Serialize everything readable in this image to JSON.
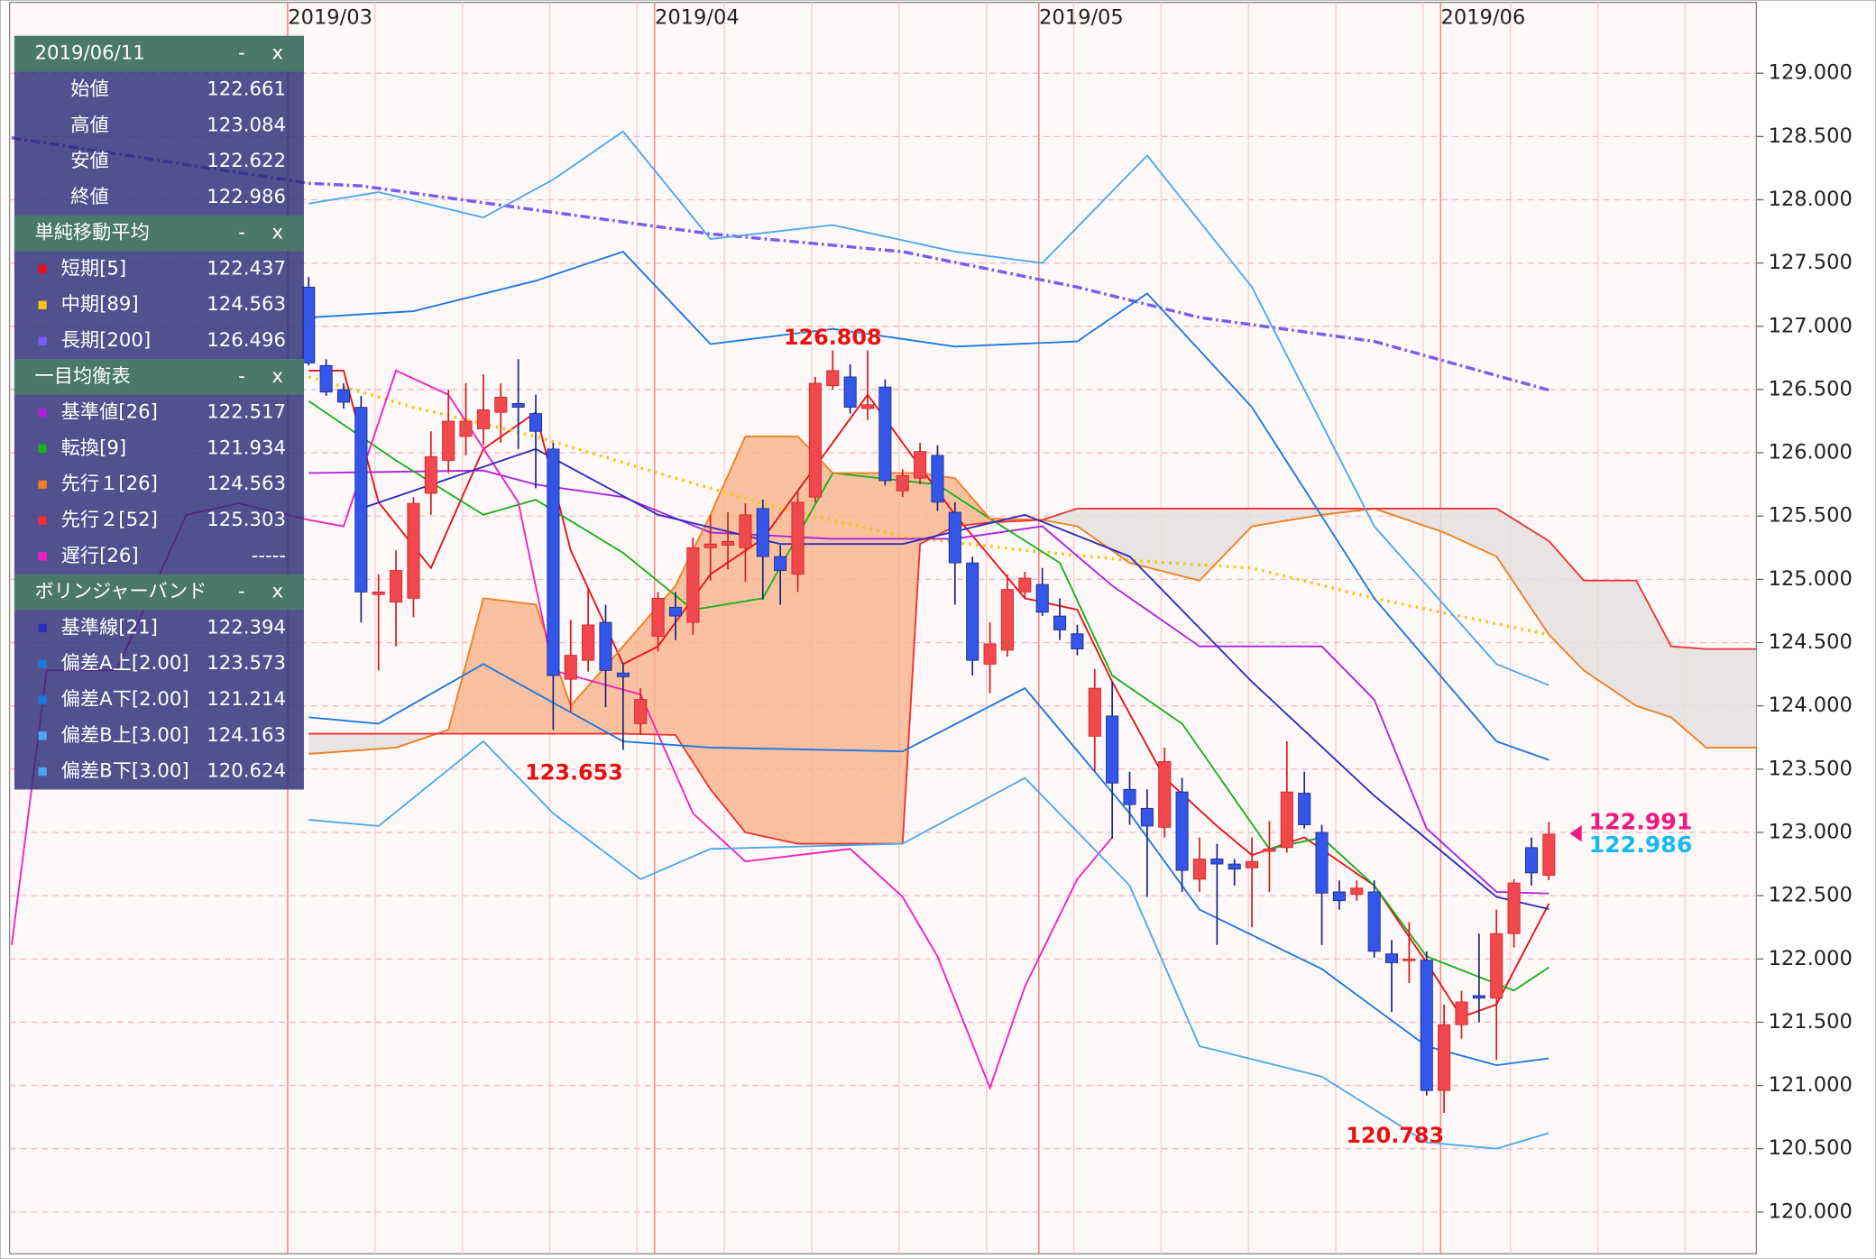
{
  "chart_data": {
    "type": "candlestick",
    "date": "2019/06/11",
    "controls": [
      "-",
      "x"
    ],
    "ohlc_labels": [
      "始値",
      "高値",
      "安値",
      "終値"
    ],
    "up_color": "#f0484d",
    "down_color": "#3355e8",
    "ylim": [
      119.67,
      129.56
    ],
    "yticks": [
      {
        "value": 120,
        "label": "120.000"
      },
      {
        "value": 120.5,
        "label": "120.500"
      },
      {
        "value": 121,
        "label": "121.000"
      },
      {
        "value": 121.5,
        "label": "121.500"
      },
      {
        "value": 122,
        "label": "122.000"
      },
      {
        "value": 122.5,
        "label": "122.500"
      },
      {
        "value": 123,
        "label": "123.000"
      },
      {
        "value": 123.5,
        "label": "123.500"
      },
      {
        "value": 124,
        "label": "124.000"
      },
      {
        "value": 124.5,
        "label": "124.500"
      },
      {
        "value": 125,
        "label": "125.000"
      },
      {
        "value": 125.5,
        "label": "125.500"
      },
      {
        "value": 126,
        "label": "126.000"
      },
      {
        "value": 126.5,
        "label": "126.500"
      },
      {
        "value": 127,
        "label": "127.000"
      },
      {
        "value": 127.5,
        "label": "127.500"
      },
      {
        "value": 128,
        "label": "128.000"
      },
      {
        "value": 128.5,
        "label": "128.500"
      },
      {
        "value": 129,
        "label": "129.000"
      }
    ],
    "grid": true,
    "categories": [
      "2019/03",
      null,
      null,
      null,
      null,
      null,
      null,
      null,
      null,
      null,
      null,
      null,
      null,
      null,
      null,
      null,
      null,
      null,
      null,
      null,
      null,
      "2019/04",
      null,
      null,
      null,
      null,
      null,
      null,
      null,
      null,
      null,
      null,
      null,
      null,
      null,
      null,
      null,
      null,
      null,
      null,
      null,
      null,
      null,
      "2019/05",
      null,
      null,
      null,
      null,
      null,
      null,
      null,
      null,
      null,
      null,
      null,
      null,
      null,
      null,
      null,
      null,
      null,
      null,
      null,
      null,
      null,
      null,
      "2019/06",
      null,
      null,
      null,
      null,
      null
    ],
    "open": [
      127.31,
      126.69,
      126.5,
      126.36,
      124.88,
      124.82,
      124.85,
      125.68,
      125.94,
      126.13,
      126.19,
      126.32,
      126.39,
      126.31,
      126.03,
      124.21,
      124.36,
      124.66,
      124.26,
      123.86,
      124.55,
      124.78,
      124.66,
      125.25,
      125.27,
      125.25,
      125.56,
      125.18,
      125.04,
      125.65,
      126.53,
      126.6,
      126.35,
      126.52,
      125.7,
      125.8,
      125.98,
      125.53,
      125.13,
      124.33,
      124.44,
      124.9,
      124.96,
      124.71,
      124.57,
      123.76,
      123.92,
      123.34,
      123.19,
      123.04,
      123.32,
      122.63,
      122.79,
      122.75,
      122.72,
      122.85,
      122.88,
      123.31,
      123.0,
      122.53,
      122.51,
      122.53,
      122.04,
      121.99,
      121.99,
      120.96,
      121.48,
      121.71,
      121.69,
      122.2,
      122.88,
      122.661
    ],
    "high": [
      127.39,
      126.74,
      126.55,
      126.45,
      125.04,
      125.23,
      125.65,
      126.17,
      126.5,
      126.55,
      126.62,
      126.55,
      126.74,
      126.46,
      126.08,
      124.68,
      124.93,
      124.8,
      124.34,
      124.14,
      124.9,
      124.9,
      125.33,
      125.51,
      125.53,
      125.6,
      125.63,
      125.27,
      125.7,
      126.6,
      126.808,
      126.7,
      126.81,
      126.58,
      125.87,
      126.08,
      126.06,
      125.61,
      125.18,
      124.66,
      125.04,
      125.06,
      125.09,
      124.85,
      124.64,
      124.29,
      124.19,
      123.48,
      123.34,
      123.67,
      123.43,
      122.96,
      122.91,
      122.79,
      122.96,
      123.09,
      123.72,
      123.48,
      123.06,
      122.62,
      122.62,
      122.62,
      122.15,
      122.29,
      122.06,
      121.64,
      121.75,
      122.2,
      122.39,
      122.63,
      122.96,
      123.084
    ],
    "low": [
      126.69,
      126.45,
      126.35,
      124.66,
      124.28,
      124.47,
      124.7,
      125.51,
      125.84,
      125.98,
      126.06,
      126.08,
      126.03,
      125.72,
      123.81,
      123.95,
      124.27,
      123.99,
      123.653,
      123.77,
      124.43,
      124.52,
      124.56,
      124.99,
      125.08,
      124.98,
      124.84,
      124.8,
      124.9,
      125.61,
      126.5,
      126.31,
      126.26,
      125.74,
      125.65,
      125.75,
      125.54,
      124.8,
      124.24,
      124.1,
      124.39,
      124.85,
      124.71,
      124.52,
      124.4,
      123.48,
      122.95,
      123.06,
      122.49,
      122.96,
      122.53,
      122.53,
      122.11,
      122.58,
      122.25,
      122.53,
      122.84,
      123.03,
      122.11,
      122.39,
      122.46,
      122.01,
      121.58,
      121.81,
      120.92,
      120.783,
      121.37,
      121.5,
      121.2,
      122.09,
      122.58,
      122.622
    ],
    "close": [
      126.71,
      126.48,
      126.4,
      124.9,
      124.9,
      125.07,
      125.6,
      125.97,
      126.25,
      126.25,
      126.34,
      126.44,
      126.36,
      126.17,
      124.24,
      124.4,
      124.64,
      124.28,
      124.23,
      124.05,
      124.85,
      124.71,
      125.25,
      125.28,
      125.3,
      125.51,
      125.18,
      125.07,
      125.61,
      126.55,
      126.65,
      126.36,
      126.38,
      125.78,
      125.82,
      126.01,
      125.61,
      125.13,
      124.36,
      124.49,
      124.92,
      125.01,
      124.74,
      124.6,
      124.45,
      124.14,
      123.39,
      123.22,
      123.05,
      123.56,
      122.7,
      122.79,
      122.75,
      122.71,
      122.77,
      122.87,
      123.32,
      123.06,
      122.52,
      122.46,
      122.56,
      122.06,
      121.97,
      122.0,
      120.96,
      121.48,
      121.66,
      121.69,
      122.2,
      122.6,
      122.68,
      122.986
    ],
    "annotations": [
      {
        "x": 30,
        "value": 126.808
      },
      {
        "x": 18,
        "value": 123.653
      },
      {
        "x": 65,
        "value": 120.783
      }
    ],
    "price_labels": [
      {
        "value": 122.991,
        "color": "#f0197d"
      },
      {
        "value": 122.986,
        "color": "#19b9f0"
      }
    ],
    "indicator_groups": [
      {
        "title": "単純移動平均",
        "series": [
          {
            "name": "短期[5]",
            "color": "#e8101a",
            "x": [
              0,
              2,
              4,
              7,
              10,
              13,
              15,
              18,
              20,
              23,
              26,
              30,
              32,
              34,
              37,
              41,
              44,
              46,
              49,
              52,
              54,
              57,
              61,
              64,
              66,
              68,
              71
            ],
            "values": [
              126.65,
              126.65,
              125.61,
              125.09,
              126.03,
              126.32,
              125.23,
              124.33,
              124.47,
              125.04,
              125.32,
              126.08,
              126.46,
              126.08,
              125.51,
              124.85,
              124.76,
              124.19,
              123.43,
              123.05,
              122.82,
              122.96,
              122.58,
              121.97,
              121.54,
              121.64,
              122.437
            ]
          },
          {
            "name": "中期[89]",
            "color": "#f5c518",
            "dash": "dot",
            "x": [
              0,
              6,
              13,
              20,
              27,
              34,
              41,
              47,
              54,
              61,
              71
            ],
            "values": [
              126.6,
              126.36,
              126.13,
              125.84,
              125.56,
              125.34,
              125.23,
              125.15,
              125.09,
              124.85,
              124.563
            ]
          },
          {
            "name": "長期[200]",
            "color": "#7b5cf0",
            "dash": "dashdot",
            "x": [
              -17,
              0,
              3,
              13,
              23,
              34,
              44,
              51,
              61,
              71
            ],
            "values": [
              128.49,
              128.13,
              128.11,
              127.92,
              127.73,
              127.59,
              127.31,
              127.07,
              126.88,
              126.496
            ]
          }
        ]
      },
      {
        "title": "一目均衡表",
        "cloud_colors": [
          "#f9b38a",
          "#e2dede"
        ],
        "series": [
          {
            "name": "基準値[26]",
            "color": "#b020e0",
            "x": [
              0,
              10,
              13,
              18,
              23,
              30,
              37,
              42,
              46,
              51,
              58,
              61,
              64,
              68,
              71
            ],
            "values": [
              125.84,
              125.86,
              125.75,
              125.65,
              125.37,
              125.32,
              125.32,
              125.42,
              124.95,
              124.47,
              124.47,
              124.05,
              123.03,
              122.53,
              122.517
            ]
          },
          {
            "name": "転換[9]",
            "color": "#18b018",
            "x": [
              0,
              5,
              10,
              13,
              18,
              22,
              26,
              30,
              36,
              39,
              43,
              46,
              50,
              55,
              58,
              61,
              64,
              69,
              71
            ],
            "values": [
              126.41,
              125.94,
              125.51,
              125.63,
              125.21,
              124.76,
              124.85,
              125.84,
              125.75,
              125.48,
              125.13,
              124.24,
              123.86,
              122.87,
              122.96,
              122.58,
              122.02,
              121.75,
              121.934
            ]
          },
          {
            "name": "先行１[26]",
            "color": "#f07f20",
            "cloud_edge": true,
            "x": [
              0,
              5,
              8,
              10,
              13,
              15,
              18,
              21,
              23,
              25,
              28,
              30,
              34,
              35,
              37,
              39,
              42,
              44,
              47,
              51,
              54,
              58,
              61,
              65,
              68,
              71,
              73,
              76,
              78,
              80,
              83
            ],
            "values": [
              123.62,
              123.67,
              123.81,
              124.85,
              124.8,
              124.0,
              124.47,
              124.95,
              125.51,
              126.13,
              126.13,
              125.84,
              125.84,
              125.84,
              125.8,
              125.48,
              125.47,
              125.42,
              125.13,
              124.99,
              125.42,
              125.51,
              125.56,
              125.37,
              125.18,
              124.563,
              124.28,
              124.0,
              123.91,
              123.67,
              123.67
            ]
          },
          {
            "name": "先行２[52]",
            "color": "#f03030",
            "cloud_edge": true,
            "x": [
              0,
              5,
              8,
              10,
              13,
              15,
              18,
              21,
              23,
              25,
              28,
              30,
              34,
              35,
              37,
              39,
              42,
              44,
              47,
              51,
              54,
              58,
              61,
              65,
              68,
              71,
              73,
              76,
              78,
              80,
              83
            ],
            "values": [
              123.78,
              123.78,
              123.78,
              123.78,
              123.78,
              123.78,
              123.78,
              123.77,
              123.34,
              123.0,
              122.91,
              122.91,
              122.91,
              125.28,
              125.42,
              125.45,
              125.47,
              125.56,
              125.56,
              125.56,
              125.56,
              125.56,
              125.56,
              125.56,
              125.56,
              125.303,
              124.99,
              124.99,
              124.47,
              124.45,
              124.45
            ]
          },
          {
            "name": "遅行[26]",
            "color": "#f020c0",
            "value_label": "-----",
            "x": [
              -17,
              -15,
              -11,
              -7,
              -4,
              0,
              2,
              5,
              8,
              12,
              14,
              19,
              22,
              25,
              31,
              34,
              36,
              39,
              41,
              44,
              46
            ],
            "values": [
              122.11,
              124.28,
              124.28,
              125.51,
              125.6,
              125.47,
              125.42,
              126.65,
              126.46,
              125.61,
              124.28,
              124.09,
              123.15,
              122.77,
              122.87,
              122.49,
              122.02,
              120.98,
              121.78,
              122.63,
              122.96
            ]
          }
        ]
      },
      {
        "title": "ボリンジャーバンド",
        "series": [
          {
            "name": "基準線[21]",
            "color": "#2c2cc0",
            "x": [
              3,
              13,
              20,
              27,
              34,
              41,
              47,
              54,
              61,
              68,
              71
            ],
            "values": [
              125.56,
              126.03,
              125.51,
              125.28,
              125.28,
              125.51,
              125.18,
              124.19,
              123.29,
              122.49,
              122.394
            ]
          },
          {
            "name": "偏差A上[2.00]",
            "color": "#1a78e0",
            "x": [
              0,
              6,
              13,
              18,
              23,
              30,
              37,
              44,
              48,
              54,
              61,
              68,
              71
            ],
            "values": [
              127.07,
              127.12,
              127.36,
              127.59,
              126.86,
              126.98,
              126.84,
              126.88,
              127.26,
              126.36,
              124.85,
              123.72,
              123.573
            ]
          },
          {
            "name": "偏差A下[2.00]",
            "color": "#1a78e0",
            "x": [
              0,
              4,
              10,
              18,
              23,
              34,
              41,
              47,
              51,
              58,
              64,
              68,
              71
            ],
            "values": [
              123.91,
              123.86,
              124.33,
              123.72,
              123.67,
              123.64,
              124.14,
              123.15,
              122.39,
              121.92,
              121.31,
              121.16,
              121.214
            ]
          },
          {
            "name": "偏差B上[3.00]",
            "color": "#4aa8f0",
            "x": [
              0,
              4,
              10,
              14,
              18,
              23,
              30,
              37,
              42,
              48,
              54,
              61,
              68,
              71
            ],
            "values": [
              127.97,
              128.06,
              127.86,
              128.16,
              128.54,
              127.69,
              127.8,
              127.59,
              127.5,
              128.35,
              127.31,
              125.42,
              124.33,
              124.163
            ]
          },
          {
            "name": "偏差B下[3.00]",
            "color": "#4aa8f0",
            "x": [
              0,
              4,
              10,
              14,
              19,
              23,
              34,
              41,
              47,
              51,
              58,
              64,
              68,
              71
            ],
            "values": [
              123.1,
              123.05,
              123.72,
              123.15,
              122.63,
              122.87,
              122.91,
              123.43,
              122.58,
              121.31,
              121.07,
              120.55,
              120.5,
              120.624
            ]
          }
        ]
      }
    ]
  }
}
